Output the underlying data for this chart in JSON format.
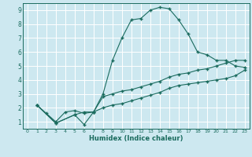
{
  "xlabel": "Humidex (Indice chaleur)",
  "bg_color": "#cde8f0",
  "grid_color": "#ffffff",
  "line_color": "#1a6b5e",
  "xlim": [
    -0.5,
    23.5
  ],
  "ylim": [
    0.5,
    9.5
  ],
  "xticks": [
    0,
    1,
    2,
    3,
    4,
    5,
    6,
    7,
    8,
    9,
    10,
    11,
    12,
    13,
    14,
    15,
    16,
    17,
    18,
    19,
    20,
    21,
    22,
    23
  ],
  "yticks": [
    1,
    2,
    3,
    4,
    5,
    6,
    7,
    8,
    9
  ],
  "line1_x": [
    1,
    2,
    3,
    4,
    5,
    6,
    7,
    8,
    9,
    10,
    11,
    12,
    13,
    14,
    15,
    16,
    17,
    18,
    19,
    20,
    21,
    22,
    23
  ],
  "line1_y": [
    2.2,
    1.6,
    1.0,
    1.7,
    1.8,
    1.6,
    1.7,
    3.0,
    5.4,
    7.0,
    8.3,
    8.4,
    9.0,
    9.2,
    9.1,
    8.3,
    7.3,
    6.0,
    5.8,
    5.4,
    5.4,
    5.0,
    4.9
  ],
  "line2_x": [
    1,
    3,
    5,
    6,
    7,
    8,
    9,
    10,
    11,
    12,
    13,
    14,
    15,
    16,
    17,
    18,
    19,
    20,
    21,
    22,
    23
  ],
  "line2_y": [
    2.2,
    0.9,
    1.5,
    1.7,
    1.7,
    2.8,
    3.0,
    3.2,
    3.3,
    3.5,
    3.7,
    3.9,
    4.2,
    4.4,
    4.5,
    4.7,
    4.8,
    5.0,
    5.2,
    5.4,
    5.4
  ],
  "line3_x": [
    1,
    3,
    5,
    6,
    7,
    8,
    9,
    10,
    11,
    12,
    13,
    14,
    15,
    16,
    17,
    18,
    19,
    20,
    21,
    22,
    23
  ],
  "line3_y": [
    2.2,
    0.9,
    1.5,
    0.8,
    1.7,
    2.0,
    2.2,
    2.3,
    2.5,
    2.7,
    2.9,
    3.1,
    3.4,
    3.6,
    3.7,
    3.8,
    3.9,
    4.0,
    4.1,
    4.3,
    4.7
  ]
}
